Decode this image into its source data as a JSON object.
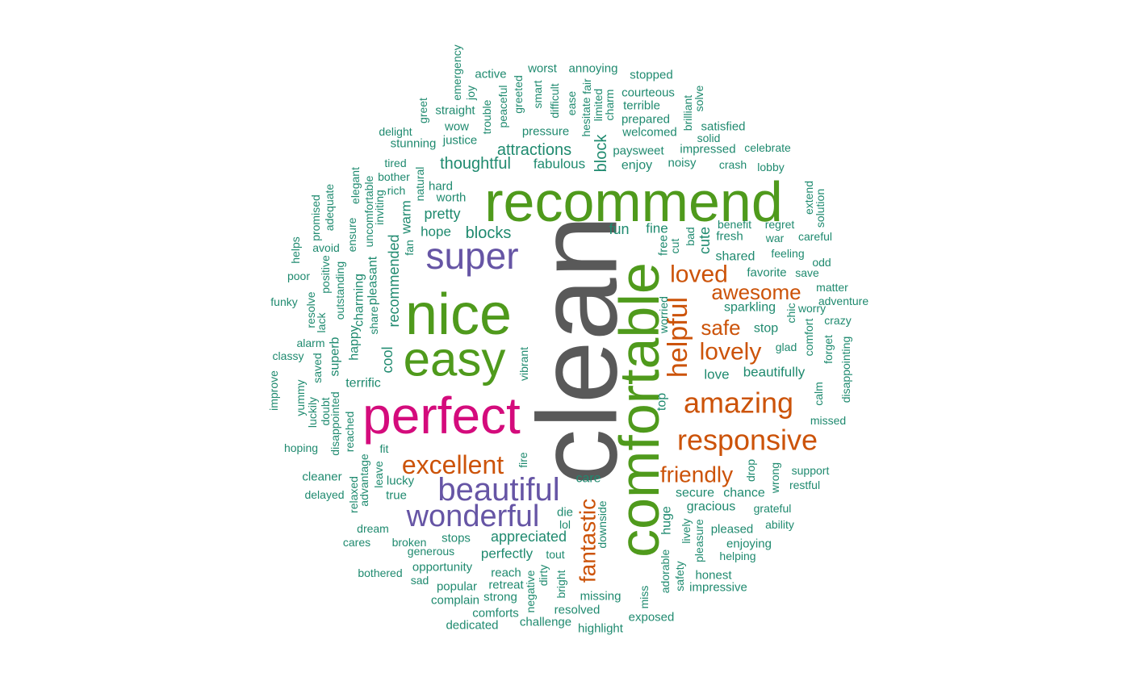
{
  "colors": {
    "tier1": "#595959",
    "tier2": "#4f9a1c",
    "tier3": "#d40b7c",
    "tier4": "#6655a5",
    "tier5": "#cc5309",
    "tier6": "#1f8a6f"
  },
  "words": [
    {
      "text": "clean",
      "tier": 1
    },
    {
      "text": "comfortable",
      "tier": 2
    },
    {
      "text": "recommend",
      "tier": 2
    },
    {
      "text": "nice",
      "tier": 2
    },
    {
      "text": "easy",
      "tier": 2
    },
    {
      "text": "perfect",
      "tier": 3
    },
    {
      "text": "super",
      "tier": 4
    },
    {
      "text": "beautiful",
      "tier": 4
    },
    {
      "text": "wonderful",
      "tier": 4
    },
    {
      "text": "responsive",
      "tier": 5
    },
    {
      "text": "amazing",
      "tier": 5
    },
    {
      "text": "excellent",
      "tier": 5
    },
    {
      "text": "helpful",
      "tier": 5
    },
    {
      "text": "loved",
      "tier": 5
    },
    {
      "text": "lovely",
      "tier": 5
    },
    {
      "text": "awesome",
      "tier": 5
    },
    {
      "text": "friendly",
      "tier": 5
    },
    {
      "text": "safe",
      "tier": 5
    },
    {
      "text": "fantastic",
      "tier": 5
    },
    {
      "text": "emergency",
      "tier": 6
    },
    {
      "text": "joy",
      "tier": 6
    },
    {
      "text": "active",
      "tier": 6
    },
    {
      "text": "worst",
      "tier": 6
    },
    {
      "text": "annoying",
      "tier": 6
    },
    {
      "text": "stopped",
      "tier": 6
    },
    {
      "text": "greet",
      "tier": 6
    },
    {
      "text": "straight",
      "tier": 6
    },
    {
      "text": "trouble",
      "tier": 6
    },
    {
      "text": "peaceful",
      "tier": 6
    },
    {
      "text": "greeted",
      "tier": 6
    },
    {
      "text": "smart",
      "tier": 6
    },
    {
      "text": "difficult",
      "tier": 6
    },
    {
      "text": "ease",
      "tier": 6
    },
    {
      "text": "hesitate",
      "tier": 6
    },
    {
      "text": "fair",
      "tier": 6
    },
    {
      "text": "limited",
      "tier": 6
    },
    {
      "text": "charm",
      "tier": 6
    },
    {
      "text": "courteous",
      "tier": 6
    },
    {
      "text": "terrible",
      "tier": 6
    },
    {
      "text": "brilliant",
      "tier": 6
    },
    {
      "text": "solve",
      "tier": 6
    },
    {
      "text": "wow",
      "tier": 6
    },
    {
      "text": "delight",
      "tier": 6
    },
    {
      "text": "pressure",
      "tier": 6
    },
    {
      "text": "prepared",
      "tier": 6
    },
    {
      "text": "welcomed",
      "tier": 6
    },
    {
      "text": "satisfied",
      "tier": 6
    },
    {
      "text": "justice",
      "tier": 6
    },
    {
      "text": "stunning",
      "tier": 6
    },
    {
      "text": "solid",
      "tier": 6
    },
    {
      "text": "attractions",
      "tier": 6
    },
    {
      "text": "block",
      "tier": 6
    },
    {
      "text": "paysweet",
      "tier": 6
    },
    {
      "text": "impressed",
      "tier": 6
    },
    {
      "text": "celebrate",
      "tier": 6
    },
    {
      "text": "thoughtful",
      "tier": 6
    },
    {
      "text": "fabulous",
      "tier": 6
    },
    {
      "text": "enjoy",
      "tier": 6
    },
    {
      "text": "noisy",
      "tier": 6
    },
    {
      "text": "crash",
      "tier": 6
    },
    {
      "text": "lobby",
      "tier": 6
    },
    {
      "text": "tired",
      "tier": 6
    },
    {
      "text": "bother",
      "tier": 6
    },
    {
      "text": "uncomfortable",
      "tier": 6
    },
    {
      "text": "elegant",
      "tier": 6
    },
    {
      "text": "adequate",
      "tier": 6
    },
    {
      "text": "promised",
      "tier": 6
    },
    {
      "text": "rich",
      "tier": 6
    },
    {
      "text": "inviting",
      "tier": 6
    },
    {
      "text": "natural",
      "tier": 6
    },
    {
      "text": "hard",
      "tier": 6
    },
    {
      "text": "worth",
      "tier": 6
    },
    {
      "text": "pretty",
      "tier": 6
    },
    {
      "text": "warm",
      "tier": 6
    },
    {
      "text": "hope",
      "tier": 6
    },
    {
      "text": "blocks",
      "tier": 6
    },
    {
      "text": "fun",
      "tier": 6
    },
    {
      "text": "fine",
      "tier": 6
    },
    {
      "text": "free",
      "tier": 6
    },
    {
      "text": "cut",
      "tier": 6
    },
    {
      "text": "bad",
      "tier": 6
    },
    {
      "text": "cute",
      "tier": 6
    },
    {
      "text": "benefit",
      "tier": 6
    },
    {
      "text": "regret",
      "tier": 6
    },
    {
      "text": "extend",
      "tier": 6
    },
    {
      "text": "solution",
      "tier": 6
    },
    {
      "text": "fresh",
      "tier": 6
    },
    {
      "text": "war",
      "tier": 6
    },
    {
      "text": "careful",
      "tier": 6
    },
    {
      "text": "shared",
      "tier": 6
    },
    {
      "text": "feeling",
      "tier": 6
    },
    {
      "text": "odd",
      "tier": 6
    },
    {
      "text": "favorite",
      "tier": 6
    },
    {
      "text": "save",
      "tier": 6
    },
    {
      "text": "matter",
      "tier": 6
    },
    {
      "text": "adventure",
      "tier": 6
    },
    {
      "text": "worry",
      "tier": 6
    },
    {
      "text": "sparkling",
      "tier": 6
    },
    {
      "text": "chic",
      "tier": 6
    },
    {
      "text": "crazy",
      "tier": 6
    },
    {
      "text": "comfort",
      "tier": 6
    },
    {
      "text": "stop",
      "tier": 6
    },
    {
      "text": "forget",
      "tier": 6
    },
    {
      "text": "glad",
      "tier": 6
    },
    {
      "text": "disappointing",
      "tier": 6
    },
    {
      "text": "beautifully",
      "tier": 6
    },
    {
      "text": "love",
      "tier": 6
    },
    {
      "text": "calm",
      "tier": 6
    },
    {
      "text": "missed",
      "tier": 6
    },
    {
      "text": "helps",
      "tier": 6
    },
    {
      "text": "avoid",
      "tier": 6
    },
    {
      "text": "ensure",
      "tier": 6
    },
    {
      "text": "fan",
      "tier": 6
    },
    {
      "text": "positive",
      "tier": 6
    },
    {
      "text": "poor",
      "tier": 6
    },
    {
      "text": "outstanding",
      "tier": 6
    },
    {
      "text": "pleasant",
      "tier": 6
    },
    {
      "text": "charming",
      "tier": 6
    },
    {
      "text": "recommended",
      "tier": 6
    },
    {
      "text": "funky",
      "tier": 6
    },
    {
      "text": "resolve",
      "tier": 6
    },
    {
      "text": "lack",
      "tier": 6
    },
    {
      "text": "share",
      "tier": 6
    },
    {
      "text": "happy",
      "tier": 6
    },
    {
      "text": "alarm",
      "tier": 6
    },
    {
      "text": "superb",
      "tier": 6
    },
    {
      "text": "cool",
      "tier": 6
    },
    {
      "text": "classy",
      "tier": 6
    },
    {
      "text": "saved",
      "tier": 6
    },
    {
      "text": "vibrant",
      "tier": 6
    },
    {
      "text": "improve",
      "tier": 6
    },
    {
      "text": "terrific",
      "tier": 6
    },
    {
      "text": "yummy",
      "tier": 6
    },
    {
      "text": "luckily",
      "tier": 6
    },
    {
      "text": "doubt",
      "tier": 6
    },
    {
      "text": "disappointed",
      "tier": 6
    },
    {
      "text": "reached",
      "tier": 6
    },
    {
      "text": "top",
      "tier": 6
    },
    {
      "text": "worried",
      "tier": 6
    },
    {
      "text": "hoping",
      "tier": 6
    },
    {
      "text": "fit",
      "tier": 6
    },
    {
      "text": "advantage",
      "tier": 6
    },
    {
      "text": "leave",
      "tier": 6
    },
    {
      "text": "fire",
      "tier": 6
    },
    {
      "text": "drop",
      "tier": 6
    },
    {
      "text": "wrong",
      "tier": 6
    },
    {
      "text": "support",
      "tier": 6
    },
    {
      "text": "restful",
      "tier": 6
    },
    {
      "text": "cleaner",
      "tier": 6
    },
    {
      "text": "relaxed",
      "tier": 6
    },
    {
      "text": "lucky",
      "tier": 6
    },
    {
      "text": "care",
      "tier": 6
    },
    {
      "text": "secure",
      "tier": 6
    },
    {
      "text": "chance",
      "tier": 6
    },
    {
      "text": "delayed",
      "tier": 6
    },
    {
      "text": "true",
      "tier": 6
    },
    {
      "text": "gracious",
      "tier": 6
    },
    {
      "text": "grateful",
      "tier": 6
    },
    {
      "text": "die",
      "tier": 6
    },
    {
      "text": "downside",
      "tier": 6
    },
    {
      "text": "huge",
      "tier": 6
    },
    {
      "text": "lively",
      "tier": 6
    },
    {
      "text": "pleased",
      "tier": 6
    },
    {
      "text": "ability",
      "tier": 6
    },
    {
      "text": "dream",
      "tier": 6
    },
    {
      "text": "appreciated",
      "tier": 6
    },
    {
      "text": "lol",
      "tier": 6
    },
    {
      "text": "pleasure",
      "tier": 6
    },
    {
      "text": "enjoying",
      "tier": 6
    },
    {
      "text": "cares",
      "tier": 6
    },
    {
      "text": "broken",
      "tier": 6
    },
    {
      "text": "stops",
      "tier": 6
    },
    {
      "text": "generous",
      "tier": 6
    },
    {
      "text": "perfectly",
      "tier": 6
    },
    {
      "text": "tout",
      "tier": 6
    },
    {
      "text": "adorable",
      "tier": 6
    },
    {
      "text": "helping",
      "tier": 6
    },
    {
      "text": "opportunity",
      "tier": 6
    },
    {
      "text": "bothered",
      "tier": 6
    },
    {
      "text": "reach",
      "tier": 6
    },
    {
      "text": "dirty",
      "tier": 6
    },
    {
      "text": "safety",
      "tier": 6
    },
    {
      "text": "honest",
      "tier": 6
    },
    {
      "text": "sad",
      "tier": 6
    },
    {
      "text": "popular",
      "tier": 6
    },
    {
      "text": "retreat",
      "tier": 6
    },
    {
      "text": "negative",
      "tier": 6
    },
    {
      "text": "bright",
      "tier": 6
    },
    {
      "text": "impressive",
      "tier": 6
    },
    {
      "text": "complain",
      "tier": 6
    },
    {
      "text": "strong",
      "tier": 6
    },
    {
      "text": "missing",
      "tier": 6
    },
    {
      "text": "miss",
      "tier": 6
    },
    {
      "text": "comforts",
      "tier": 6
    },
    {
      "text": "resolved",
      "tier": 6
    },
    {
      "text": "exposed",
      "tier": 6
    },
    {
      "text": "dedicated",
      "tier": 6
    },
    {
      "text": "challenge",
      "tier": 6
    },
    {
      "text": "highlight",
      "tier": 6
    }
  ]
}
